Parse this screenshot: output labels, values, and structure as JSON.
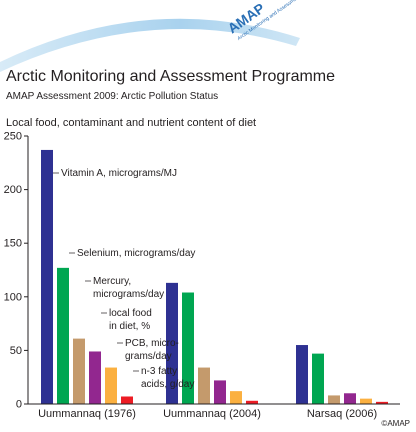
{
  "header": {
    "logo": {
      "acronym": "AMAP",
      "name": "Arctic Monitoring and Assessment Programme"
    },
    "title": "Arctic Monitoring and Assessment Programme",
    "subtitle": "AMAP Assessment 2009: Arctic Pollution Status",
    "copyright": "©AMAP"
  },
  "chart_data": {
    "type": "bar",
    "title": "Local food, contaminant and nutrient content of diet",
    "categories": [
      "Uummannaq (1976)",
      "Uummannaq (2004)",
      "Narsaq (2006)"
    ],
    "series": [
      {
        "name": "Vitamin A, micrograms/MJ",
        "color": "#2e3192",
        "values": [
          237,
          113,
          55
        ]
      },
      {
        "name": "Selenium, micrograms/day",
        "color": "#00a651",
        "values": [
          127,
          104,
          47
        ]
      },
      {
        "name": "Mercury,\nmicrograms/day",
        "color": "#c49a6c",
        "values": [
          61,
          34,
          8
        ]
      },
      {
        "name": "local food\nin diet, %",
        "color": "#92278f",
        "values": [
          49,
          22,
          10
        ]
      },
      {
        "name": "PCB, micro-\ngrams/day",
        "color": "#fbb040",
        "values": [
          34,
          12,
          5
        ]
      },
      {
        "name": "n-3 fatty\nacids, g/day",
        "color": "#ed1c24",
        "values": [
          7,
          3,
          2
        ]
      }
    ],
    "ylim": [
      0,
      250
    ],
    "yticks": [
      0,
      50,
      100,
      150,
      200,
      250
    ]
  }
}
